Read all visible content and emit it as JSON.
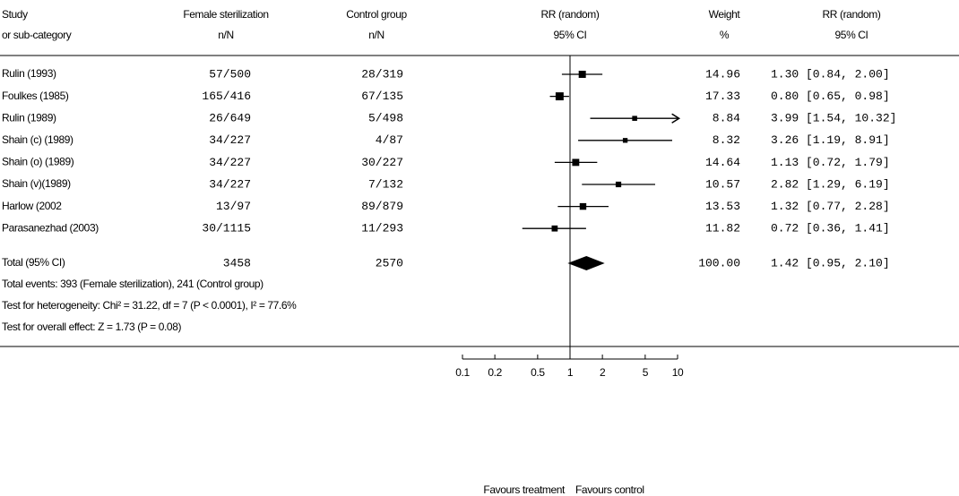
{
  "chart_data": {
    "type": "forest",
    "headers": [
      [
        "Study",
        "or sub-category"
      ],
      [
        "Female sterilization",
        "n/N"
      ],
      [
        "Control group",
        "n/N"
      ],
      [
        "RR (random)",
        "95% CI"
      ],
      [
        "Weight",
        "%"
      ],
      [
        "RR (random)",
        "95% CI"
      ]
    ],
    "categories": [
      "Rulin (1993)",
      "Foulkes (1985)",
      "Rulin (1989)",
      "Shain (c) (1989)",
      "Shain (o) (1989)",
      "Shain (v)(1989)",
      "Harlow (2002",
      "Parasanezhad (2003)"
    ],
    "treatment": [
      "57/500",
      "165/416",
      "26/649",
      "34/227",
      "34/227",
      "34/227",
      "13/97",
      "30/1115"
    ],
    "control": [
      "28/319",
      "67/135",
      "5/498",
      "4/87",
      "30/227",
      "7/132",
      "89/879",
      "11/293"
    ],
    "weights": [
      14.96,
      17.33,
      8.84,
      8.32,
      14.64,
      10.57,
      13.53,
      11.82
    ],
    "rr": [
      1.3,
      0.8,
      3.99,
      3.26,
      1.13,
      2.82,
      1.32,
      0.72
    ],
    "lower": [
      0.84,
      0.65,
      1.54,
      1.19,
      0.72,
      1.29,
      0.77,
      0.36
    ],
    "upper": [
      2.0,
      0.98,
      10.32,
      8.91,
      1.79,
      6.19,
      2.28,
      1.41
    ],
    "value_labels": [
      "1.30 [0.84, 2.00]",
      "0.80 [0.65, 0.98]",
      "3.99 [1.54, 10.32]",
      "3.26 [1.19, 8.91]",
      "1.13 [0.72, 1.79]",
      "2.82 [1.29, 6.19]",
      "1.32 [0.77, 2.28]",
      "0.72 [0.36, 1.41]"
    ],
    "total": {
      "label": "Total (95% CI)",
      "treatment": 3458,
      "control": 2570,
      "weight": {
        "value": 100,
        "label": "100.00"
      },
      "rr": 1.42,
      "lower": 0.95,
      "upper": 2.1,
      "value_label": "1.42 [0.95, 2.10]"
    },
    "notes": [
      "Total events: 393 (Female sterilization), 241 (Control group)",
      "Test for heterogeneity: Chi² = 31.22, df = 7 (P < 0.0001), I² = 77.6%",
      "Test for overall effect: Z = 1.73 (P = 0.08)"
    ],
    "xlim": [
      0.1,
      10
    ],
    "xticks": [
      0.1,
      0.2,
      0.5,
      1,
      2,
      5,
      10
    ],
    "log_scale": true,
    "axis_labels": [
      "Favours treatment",
      "Favours control"
    ],
    "color": "#000000"
  }
}
